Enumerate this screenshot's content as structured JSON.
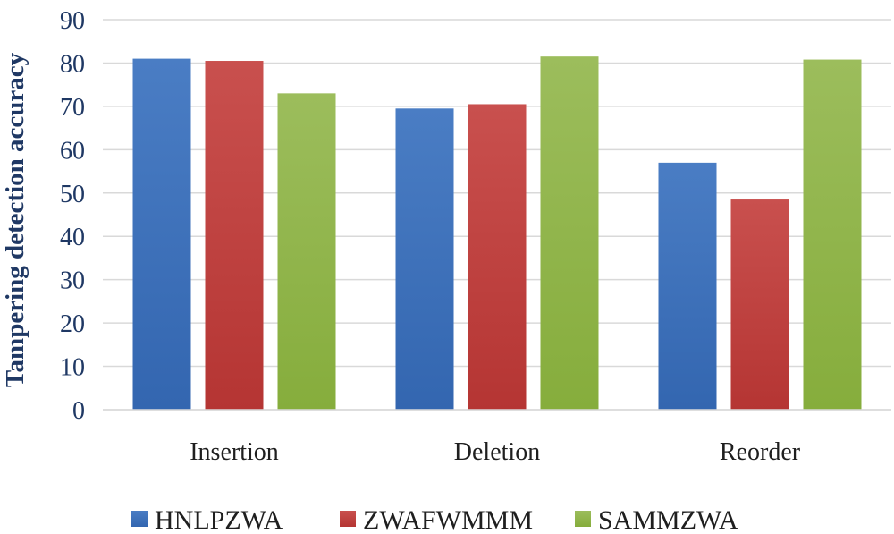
{
  "chart_data": {
    "type": "bar",
    "title": "",
    "xlabel": "",
    "ylabel": "Tampering detection accuracy",
    "categories": [
      "Insertion",
      "Deletion",
      "Reorder"
    ],
    "series": [
      {
        "name": "HNLPZWA",
        "values": [
          81.0,
          69.5,
          57.0
        ],
        "color": "#4a7dc4",
        "color_dark": "#3366b0"
      },
      {
        "name": "ZWAFWMMM",
        "values": [
          80.5,
          70.5,
          48.5
        ],
        "color": "#c9504e",
        "color_dark": "#b53533"
      },
      {
        "name": "SAMMZWA",
        "values": [
          73.0,
          81.5,
          80.8
        ],
        "color": "#9cbd5c",
        "color_dark": "#86ad3c"
      }
    ],
    "ylim": [
      0,
      90
    ],
    "yticks": [
      0,
      10,
      20,
      30,
      40,
      50,
      60,
      70,
      80,
      90
    ],
    "grid": true,
    "legend": "bottom"
  }
}
